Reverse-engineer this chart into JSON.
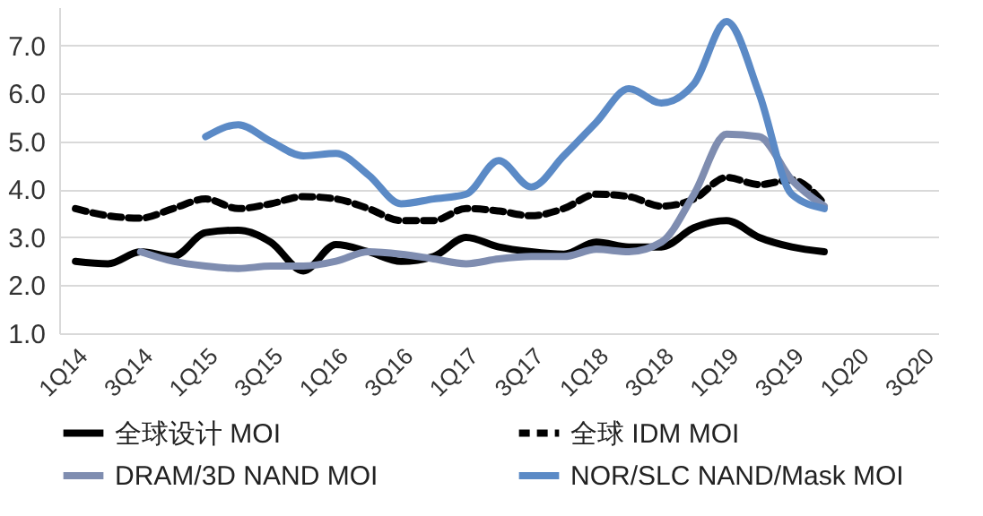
{
  "chart_data": {
    "type": "line",
    "categories": [
      "1Q14",
      null,
      "3Q14",
      null,
      "1Q15",
      null,
      "3Q15",
      null,
      "1Q16",
      null,
      "3Q16",
      null,
      "1Q17",
      null,
      "3Q17",
      null,
      "1Q18",
      null,
      "3Q18",
      null,
      "1Q19",
      null,
      "3Q19",
      null,
      "1Q20",
      null,
      "3Q20"
    ],
    "ylim": [
      1,
      7.8
    ],
    "yticks": [
      {
        "value": 1,
        "label": "1.0"
      },
      {
        "value": 2,
        "label": "2.0"
      },
      {
        "value": 3,
        "label": "3.0"
      },
      {
        "value": 4,
        "label": "4.0"
      },
      {
        "value": 5,
        "label": "5.0"
      },
      {
        "value": 6,
        "label": "6.0"
      },
      {
        "value": 7,
        "label": "7.0"
      }
    ],
    "grid": "y",
    "legend": "bottom",
    "marker": "none",
    "series": [
      {
        "name": "全球设计 MOI",
        "color": "#000000",
        "line_style": "solid",
        "values": [
          2.5,
          2.45,
          2.7,
          2.6,
          3.1,
          3.15,
          2.9,
          2.3,
          2.85,
          2.7,
          2.5,
          2.6,
          3.0,
          2.8,
          2.7,
          2.65,
          2.9,
          2.8,
          2.8,
          3.2,
          3.35,
          3.0,
          2.8,
          2.7,
          null,
          null,
          null
        ]
      },
      {
        "name": "全球 IDM MOI",
        "color": "#000000",
        "line_style": "dashed",
        "values": [
          3.6,
          3.45,
          3.4,
          3.6,
          3.8,
          3.6,
          3.7,
          3.85,
          3.8,
          3.6,
          3.35,
          3.35,
          3.6,
          3.55,
          3.45,
          3.6,
          3.9,
          3.85,
          3.65,
          3.8,
          4.25,
          4.1,
          4.2,
          3.7,
          null,
          null,
          null
        ]
      },
      {
        "name": "DRAM/3D NAND MOI",
        "color": "#7f8db0",
        "line_style": "solid",
        "values": [
          null,
          null,
          2.7,
          2.5,
          2.4,
          2.35,
          2.4,
          2.4,
          2.5,
          2.7,
          2.65,
          2.55,
          2.45,
          2.55,
          2.6,
          2.6,
          2.75,
          2.7,
          2.9,
          3.9,
          5.15,
          5.1,
          4.2,
          3.65,
          null,
          null,
          null
        ]
      },
      {
        "name": "NOR/SLC NAND/Mask MOI",
        "color": "#5b8ac6",
        "line_style": "solid",
        "values": [
          null,
          null,
          null,
          null,
          5.1,
          5.35,
          5.0,
          4.7,
          4.75,
          4.3,
          3.7,
          3.8,
          3.9,
          4.6,
          4.05,
          4.7,
          5.4,
          6.1,
          5.8,
          6.2,
          7.5,
          6.0,
          3.9,
          3.6,
          null,
          null,
          null
        ]
      }
    ]
  }
}
